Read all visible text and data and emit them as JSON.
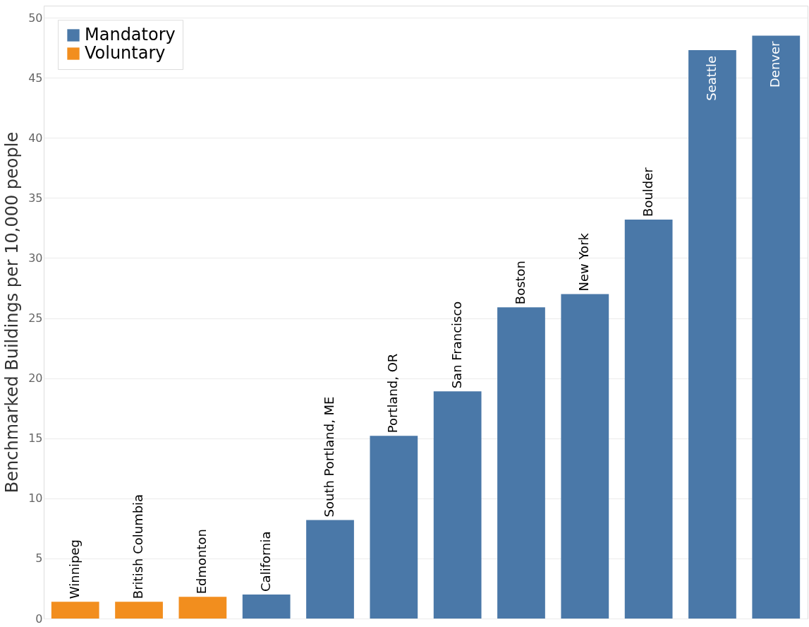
{
  "chart_data": {
    "type": "bar",
    "ylabel": "Benchmarked Buildings per 10,000 people",
    "categories": [
      "Winnipeg",
      "British Columbia",
      "Edmonton",
      "California",
      "South Portland, ME",
      "Portland, OR",
      "San Francisco",
      "Boston",
      "New York",
      "Boulder",
      "Seattle",
      "Denver"
    ],
    "series": [
      {
        "name": "Mandatory",
        "color": "#4a78a8",
        "values": [
          null,
          null,
          null,
          2.0,
          8.2,
          15.2,
          18.9,
          25.9,
          27.0,
          33.2,
          47.3,
          48.5
        ]
      },
      {
        "name": "Voluntary",
        "color": "#f28e1e",
        "values": [
          1.4,
          1.4,
          1.8,
          null,
          null,
          null,
          null,
          null,
          null,
          null,
          null,
          null
        ]
      }
    ],
    "ylim": [
      0,
      51
    ],
    "yticks": [
      0,
      5,
      10,
      15,
      20,
      25,
      30,
      35,
      40,
      45,
      50
    ],
    "grid": "y",
    "legend": "top left",
    "tick_labels": "y"
  }
}
